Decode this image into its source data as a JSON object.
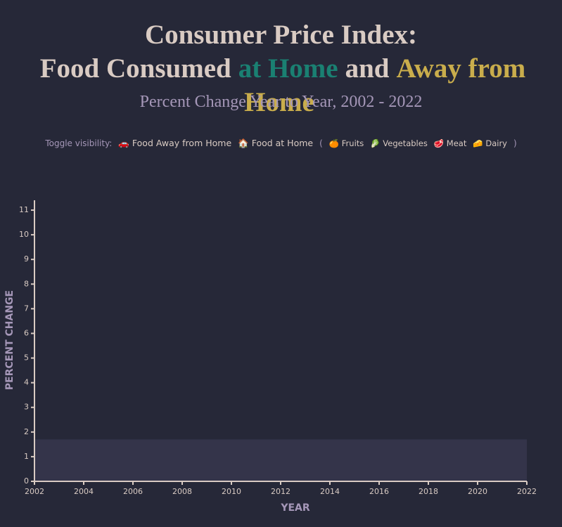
{
  "chart_data": {
    "type": "line",
    "title_line1": "Consumer Price Index:",
    "title_parts": [
      {
        "text": "Food Consumed",
        "color": "#d9cbc3"
      },
      {
        "text": "at Home",
        "color": "#1a8072"
      },
      {
        "text": "and",
        "color": "#d9cbc3"
      },
      {
        "text": "Away from Home",
        "color": "#c9ad4c"
      }
    ],
    "subtitle": "Percent Change Year to Year, 2002 - 2022",
    "legend_label": "Toggle visibility:",
    "group_open": "(",
    "group_close": ")",
    "series": [
      {
        "icon": "🚗",
        "name": "Food Away from Home",
        "color": "#c9ad4c"
      },
      {
        "icon": "🏠",
        "name": "Food at Home",
        "color": "#1a8072"
      },
      {
        "icon": "🍊",
        "name": "Fruits"
      },
      {
        "icon": "🥬",
        "name": "Vegetables"
      },
      {
        "icon": "🥩",
        "name": "Meat"
      },
      {
        "icon": "🧀",
        "name": "Dairy"
      }
    ],
    "band": [
      0,
      1.7
    ],
    "xlabel": "YEAR",
    "ylabel": "PERCENT CHANGE",
    "xlim": [
      2002,
      2022
    ],
    "xticks": [
      2002,
      2004,
      2006,
      2008,
      2010,
      2012,
      2014,
      2016,
      2018,
      2020,
      2022
    ],
    "ylim": [
      0,
      11.4
    ],
    "yticks": [
      0,
      1,
      2,
      3,
      4,
      5,
      6,
      7,
      8,
      9,
      10,
      11
    ]
  }
}
